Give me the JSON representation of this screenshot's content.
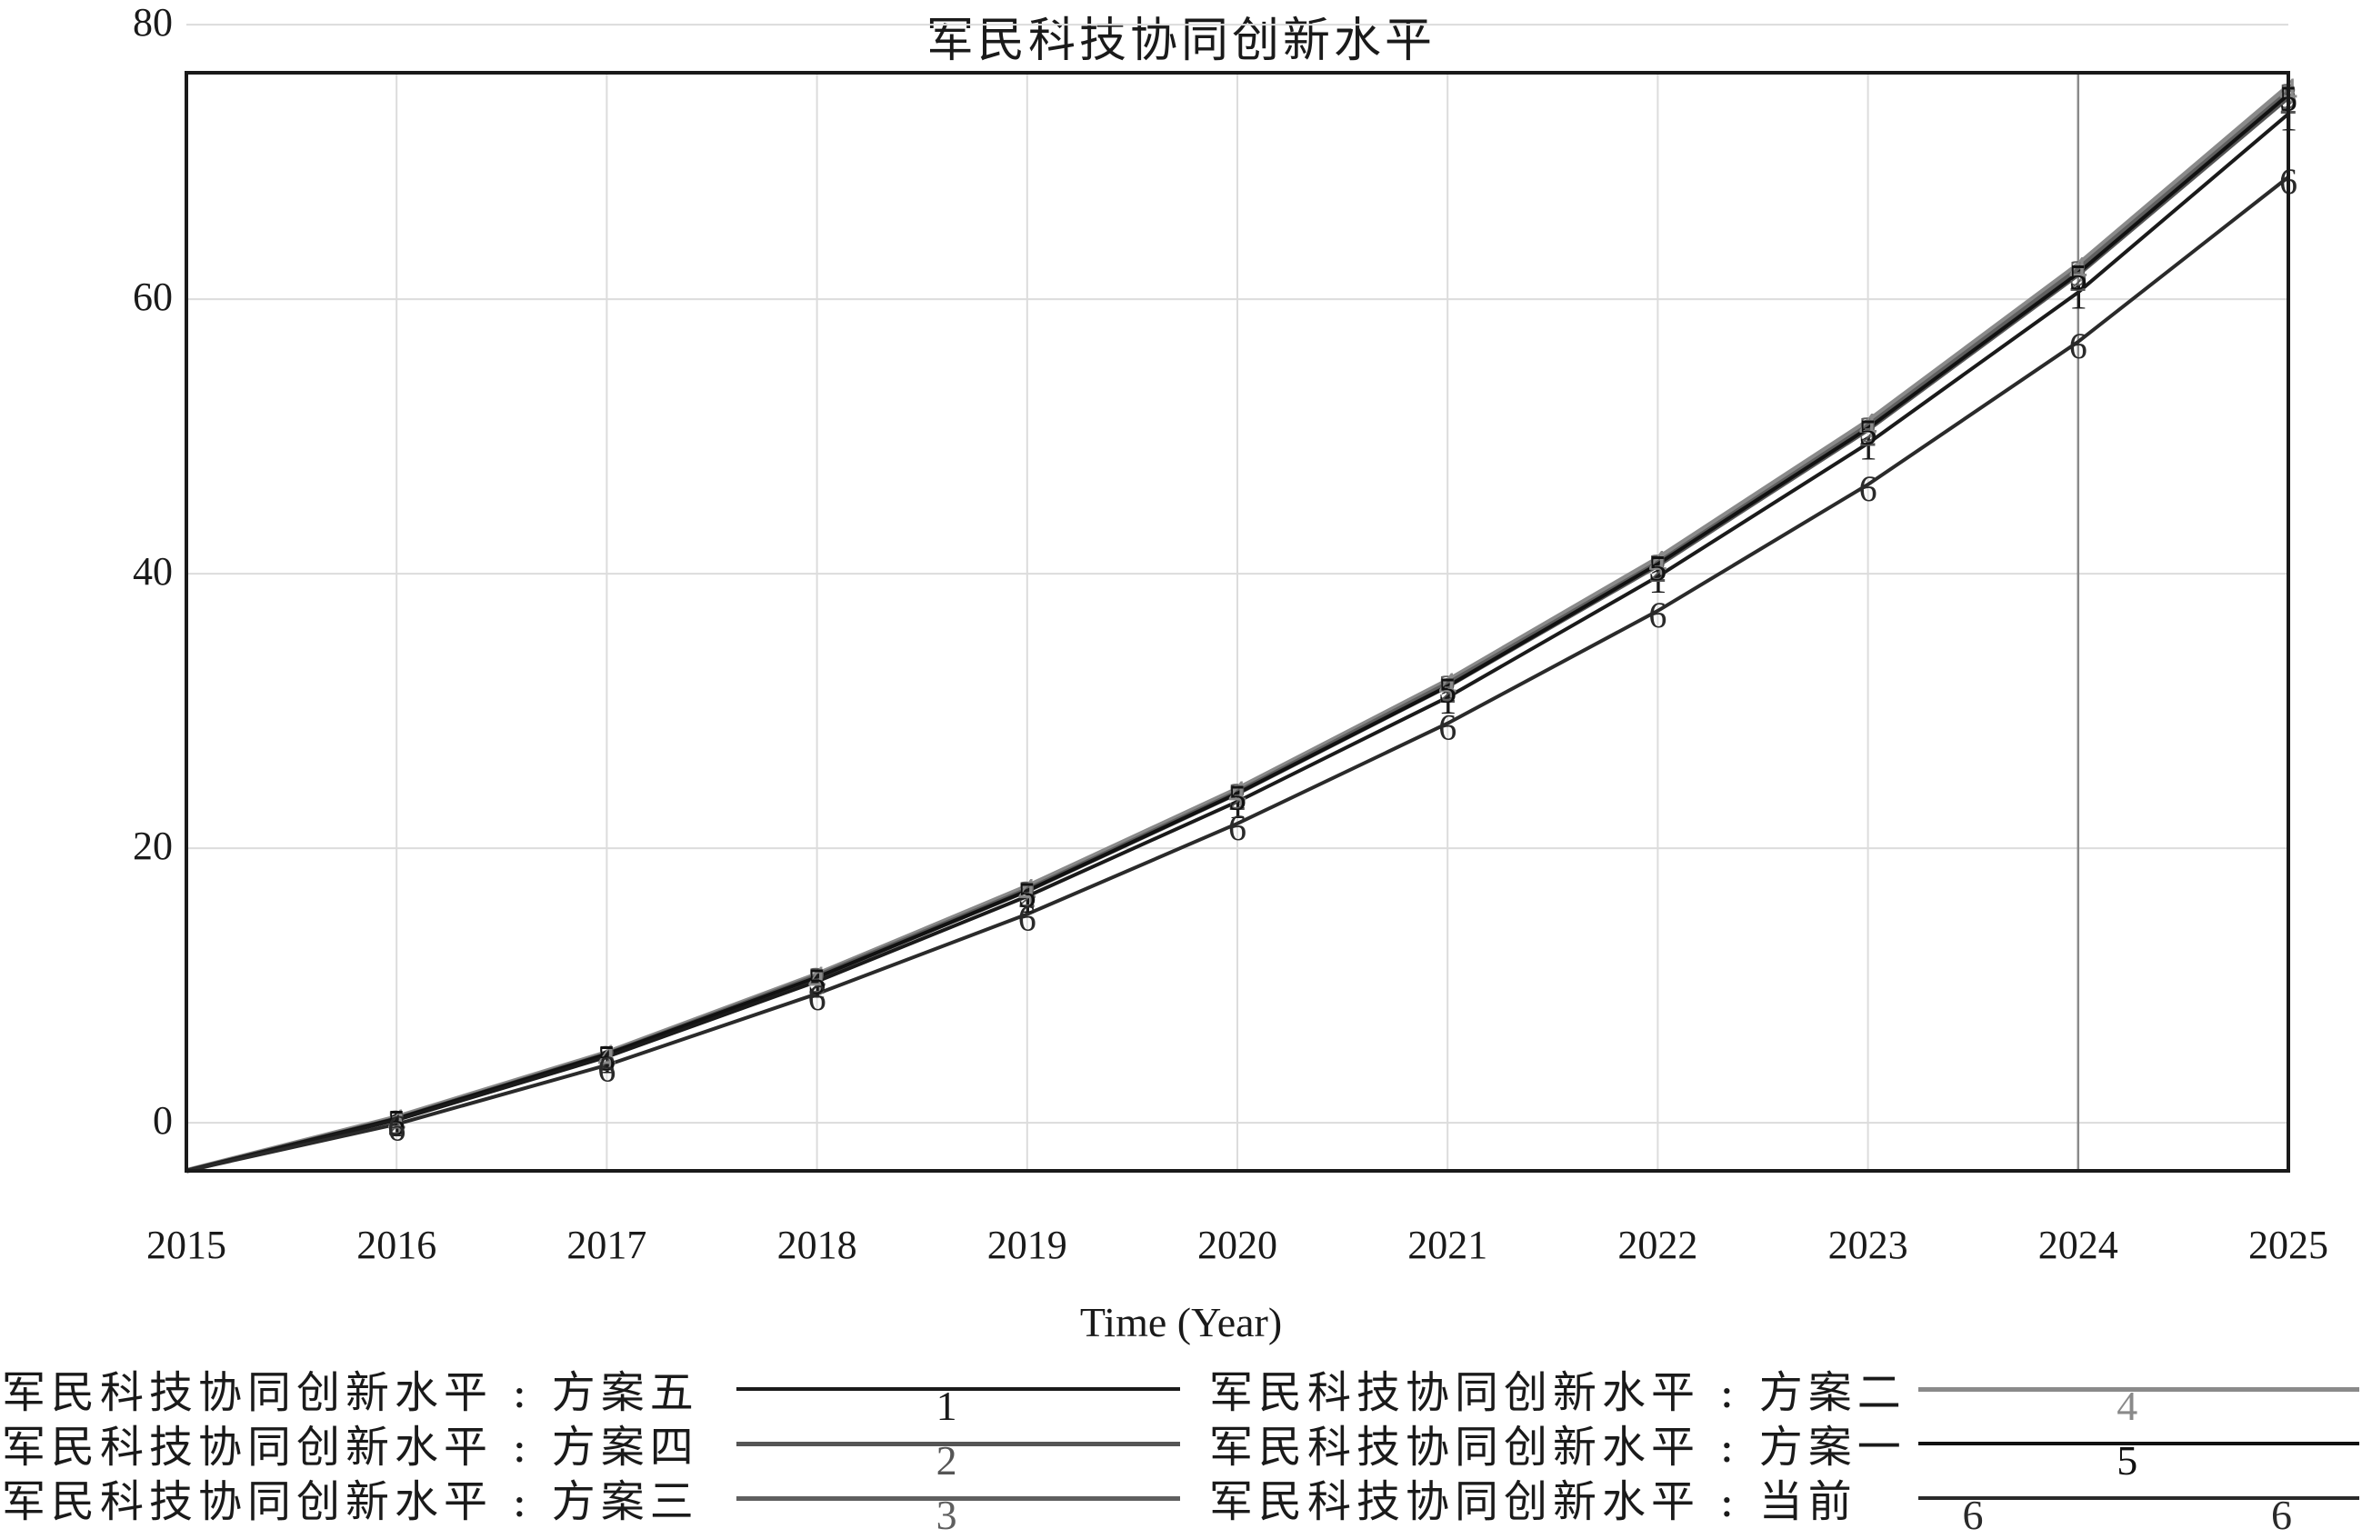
{
  "chart_data": {
    "type": "line",
    "title": "军民科技协同创新水平",
    "xlabel": "Time (Year)",
    "ylabel": "",
    "x": [
      2015,
      2016,
      2017,
      2018,
      2019,
      2020,
      2021,
      2022,
      2023,
      2024,
      2025
    ],
    "x_ticks": [
      "2015",
      "2016",
      "2017",
      "2018",
      "2019",
      "2020",
      "2021",
      "2022",
      "2023",
      "2024",
      "2025"
    ],
    "y_ticks": [
      "0",
      "20",
      "40",
      "60",
      "80"
    ],
    "xlim": [
      2015,
      2025
    ],
    "ylim": [
      -3.5,
      76.5
    ],
    "grid": true,
    "legend_position": "bottom",
    "series": [
      {
        "name": "军民科技协同创新水平 : 方案五",
        "marker": "1",
        "color": "#1a1a1a",
        "values": [
          -3.5,
          0.2,
          4.8,
          10.3,
          16.5,
          23.4,
          31.0,
          39.8,
          49.5,
          60.5,
          73.5
        ]
      },
      {
        "name": "军民科技协同创新水平 : 方案四",
        "marker": "2",
        "color": "#555555",
        "values": [
          -3.5,
          0.3,
          5.0,
          10.6,
          16.9,
          24.0,
          31.8,
          40.6,
          50.5,
          61.8,
          74.7
        ]
      },
      {
        "name": "军民科技协同创新水平 : 方案三",
        "marker": "3",
        "color": "#5f5f5f",
        "values": [
          -3.5,
          0.3,
          5.0,
          10.7,
          17.0,
          24.1,
          32.0,
          40.8,
          50.8,
          62.2,
          75.1
        ]
      },
      {
        "name": "军民科技协同创新水平 : 方案二",
        "marker": "4",
        "color": "#8a8a8a",
        "values": [
          -3.5,
          0.4,
          5.1,
          10.8,
          17.2,
          24.3,
          32.2,
          41.1,
          51.1,
          62.5,
          75.5
        ]
      },
      {
        "name": "军民科技协同创新水平 : 方案一",
        "marker": "5",
        "color": "#111111",
        "values": [
          -3.5,
          0.3,
          5.0,
          10.6,
          16.9,
          24.0,
          31.8,
          40.7,
          50.6,
          61.9,
          74.9
        ]
      },
      {
        "name": "军民科技协同创新水平 : 当前",
        "marker": "6",
        "color": "#2a2a2a",
        "values": [
          -3.5,
          -0.1,
          4.2,
          9.4,
          15.2,
          21.8,
          29.1,
          37.3,
          46.5,
          56.9,
          68.9
        ]
      }
    ],
    "reference_line_x": 2024
  }
}
